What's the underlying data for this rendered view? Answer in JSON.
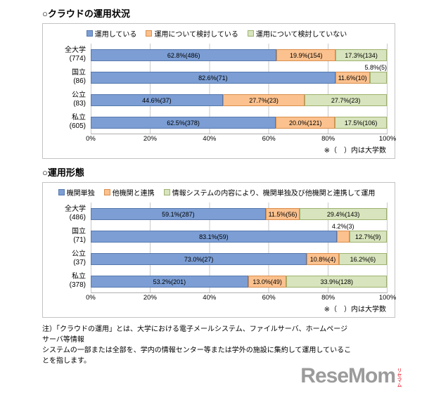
{
  "colors": {
    "series": [
      {
        "name": "blue",
        "fill": "#7C9ED4",
        "border": "#5578AE"
      },
      {
        "name": "orange",
        "fill": "#FBC18E",
        "border": "#D98E4C"
      },
      {
        "name": "green",
        "fill": "#D8E4BD",
        "border": "#9DB26F"
      }
    ],
    "gridline": "#c9c9c9",
    "frame_border": "#c3c3c3"
  },
  "chart_data": [
    {
      "type": "bar",
      "stacked": true,
      "orientation": "horizontal",
      "title": "○クラウドの運用状況",
      "legend": [
        "運用している",
        "運用について検討している",
        "運用について検討していない"
      ],
      "x_ticks": [
        "0%",
        "20%",
        "40%",
        "60%",
        "80%",
        "100%"
      ],
      "xlim": [
        0,
        100
      ],
      "axis_note": "※（　）内は大学数",
      "categories": [
        {
          "name": "全大学",
          "count": "(774)",
          "segments": [
            {
              "pct": 62.8,
              "label": "62.8%(486)"
            },
            {
              "pct": 19.9,
              "label": "19.9%(154)"
            },
            {
              "pct": 17.3,
              "label": "17.3%(134)"
            }
          ]
        },
        {
          "name": "国立",
          "count": "(86)",
          "segments": [
            {
              "pct": 82.6,
              "label": "82.6%(71)"
            },
            {
              "pct": 11.6,
              "label": "11.6%(10)"
            },
            {
              "pct": 5.8,
              "label": "5.8%(5)",
              "label_above": true
            }
          ]
        },
        {
          "name": "公立",
          "count": "(83)",
          "segments": [
            {
              "pct": 44.6,
              "label": "44.6%(37)"
            },
            {
              "pct": 27.7,
              "label": "27.7%(23)"
            },
            {
              "pct": 27.7,
              "label": "27.7%(23)"
            }
          ]
        },
        {
          "name": "私立",
          "count": "(605)",
          "segments": [
            {
              "pct": 62.5,
              "label": "62.5%(378)"
            },
            {
              "pct": 20.0,
              "label": "20.0%(121)"
            },
            {
              "pct": 17.5,
              "label": "17.5%(106)"
            }
          ]
        }
      ]
    },
    {
      "type": "bar",
      "stacked": true,
      "orientation": "horizontal",
      "title": "○運用形態",
      "legend": [
        "機関単独",
        "他機関と連携",
        "情報システムの内容により、機関単独及び他機関と連携して運用"
      ],
      "x_ticks": [
        "0%",
        "20%",
        "40%",
        "60%",
        "80%",
        "100%"
      ],
      "xlim": [
        0,
        100
      ],
      "axis_note": "※（　）内は大学数",
      "categories": [
        {
          "name": "全大学",
          "count": "(486)",
          "segments": [
            {
              "pct": 59.1,
              "label": "59.1%(287)"
            },
            {
              "pct": 11.5,
              "label": "11.5%(56)"
            },
            {
              "pct": 29.4,
              "label": "29.4%(143)"
            }
          ]
        },
        {
          "name": "国立",
          "count": "(71)",
          "segments": [
            {
              "pct": 83.1,
              "label": "83.1%(59)"
            },
            {
              "pct": 4.2,
              "label": "4.2%(3)",
              "label_above": true
            },
            {
              "pct": 12.7,
              "label": "12.7%(9)"
            }
          ]
        },
        {
          "name": "公立",
          "count": "(37)",
          "segments": [
            {
              "pct": 73.0,
              "label": "73.0%(27)"
            },
            {
              "pct": 10.8,
              "label": "10.8%(4)"
            },
            {
              "pct": 16.2,
              "label": "16.2%(6)"
            }
          ]
        },
        {
          "name": "私立",
          "count": "(378)",
          "segments": [
            {
              "pct": 53.2,
              "label": "53.2%(201)"
            },
            {
              "pct": 13.0,
              "label": "13.0%(49)"
            },
            {
              "pct": 33.9,
              "label": "33.9%(128)"
            }
          ]
        }
      ]
    }
  ],
  "footnote": {
    "line1": "注）「クラウドの運用」とは、大学における電子メールシステム、ファイルサーバ、ホームページサーバ等情報",
    "line2": "システムの一部または全部を、学内の情報センター等または学外の施設に集約して運用していることを指します。"
  },
  "watermark": {
    "text": "ReseMom",
    "sub": "リセマム"
  }
}
